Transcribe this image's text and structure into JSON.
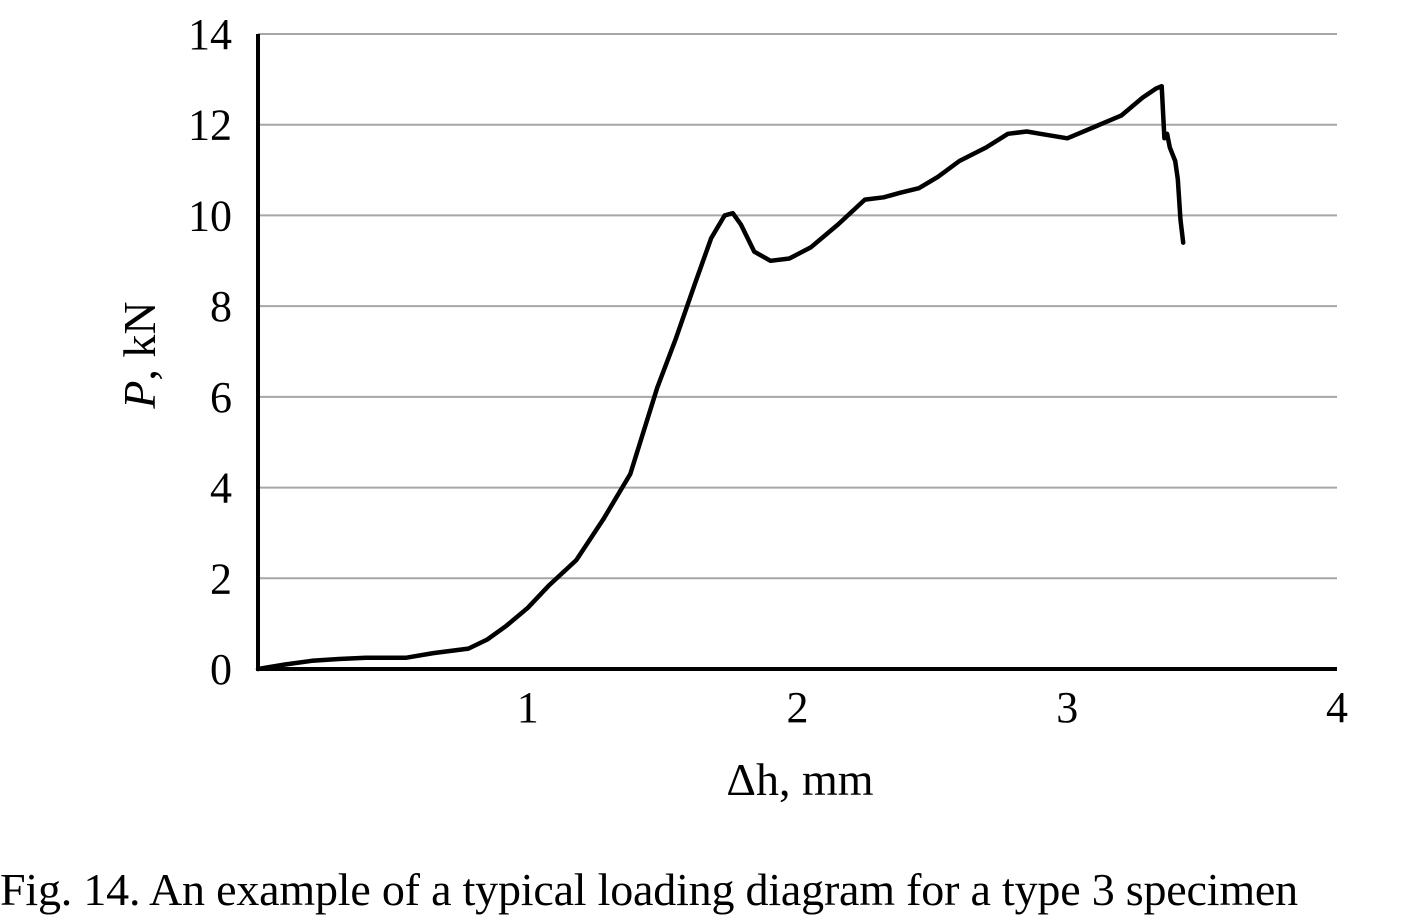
{
  "caption": "Fig. 14. An example of a typical loading diagram for a type 3 specimen",
  "chart_data": {
    "type": "line",
    "xlabel": "Δh, mm",
    "ylabel_italic": "P",
    "ylabel_rest": ", kN",
    "xlim": [
      0,
      4
    ],
    "ylim": [
      0,
      14
    ],
    "xticks": [
      1,
      2,
      3,
      4
    ],
    "yticks": [
      0,
      2,
      4,
      6,
      8,
      10,
      12,
      14
    ],
    "grid": "horizontal",
    "line_color": "#000000",
    "grid_color": "#a6a6a6",
    "series": [
      {
        "x": [
          0.0,
          0.1,
          0.2,
          0.3,
          0.4,
          0.55,
          0.65,
          0.78,
          0.85,
          0.92,
          1.0,
          1.08,
          1.18,
          1.28,
          1.38,
          1.48,
          1.55,
          1.62,
          1.68,
          1.73,
          1.76,
          1.79,
          1.84,
          1.9,
          1.97,
          2.05,
          2.15,
          2.25,
          2.32,
          2.38,
          2.45,
          2.52,
          2.6,
          2.7,
          2.78,
          2.85,
          2.9,
          3.0,
          3.1,
          3.2,
          3.28,
          3.33,
          3.35,
          3.36,
          3.37,
          3.38,
          3.4,
          3.41,
          3.42,
          3.43
        ],
        "y": [
          0.0,
          0.1,
          0.18,
          0.22,
          0.25,
          0.25,
          0.35,
          0.45,
          0.65,
          0.95,
          1.35,
          1.85,
          2.4,
          3.3,
          4.3,
          6.2,
          7.3,
          8.5,
          9.5,
          10.0,
          10.05,
          9.8,
          9.2,
          9.0,
          9.05,
          9.3,
          9.8,
          10.35,
          10.4,
          10.5,
          10.6,
          10.85,
          11.2,
          11.5,
          11.8,
          11.85,
          11.8,
          11.7,
          11.95,
          12.2,
          12.6,
          12.8,
          12.85,
          11.7,
          11.8,
          11.5,
          11.2,
          10.8,
          9.9,
          9.4
        ]
      }
    ]
  }
}
